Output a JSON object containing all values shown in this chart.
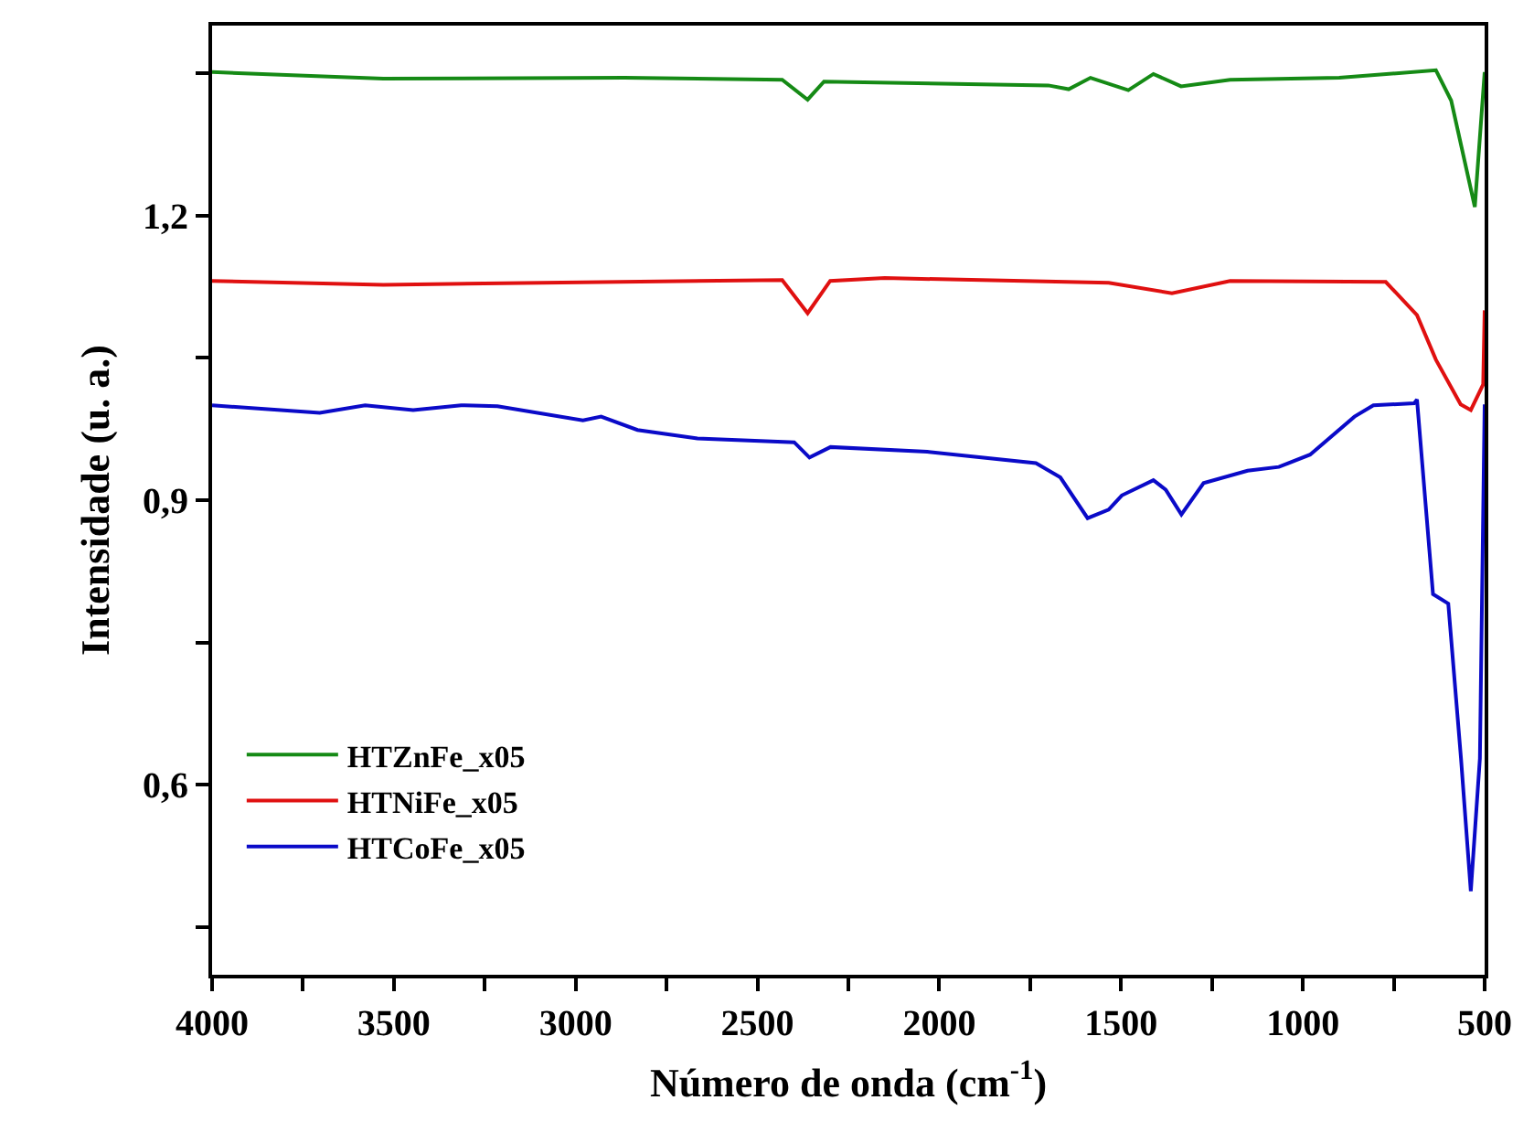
{
  "chart_data": {
    "type": "line",
    "xlabel": "Número de onda (cm$^{-1}$)",
    "ylabel": "Intensidade (u. a.)",
    "xlim": [
      4000,
      500
    ],
    "ylim": [
      0.4,
      1.4
    ],
    "xticks": [
      4000,
      {
        "value": 3750,
        "label": null
      },
      3500,
      {
        "value": 3250,
        "label": null
      },
      3000,
      {
        "value": 2750,
        "label": null
      },
      2500,
      {
        "value": 2250,
        "label": null
      },
      2000,
      {
        "value": 1750,
        "label": null
      },
      1500,
      {
        "value": 1250,
        "label": null
      },
      1000,
      {
        "value": 750,
        "label": null
      },
      500
    ],
    "yticks": [
      {
        "value": 0.45,
        "label": null
      },
      {
        "value": 0.6,
        "label": "0,6"
      },
      {
        "value": 0.75,
        "label": null
      },
      {
        "value": 0.9,
        "label": "0,9"
      },
      {
        "value": 1.05,
        "label": null
      },
      {
        "value": 1.2,
        "label": "1,2"
      },
      {
        "value": 1.35,
        "label": null
      }
    ],
    "legend": "bottom left",
    "marker": "none",
    "line_style": "solid",
    "series": [
      {
        "name": "HTZnFe_x05",
        "color": "#158a15",
        "x": [
          4000,
          3529,
          2866,
          2432,
          2362,
          2317,
          1700,
          1644,
          1584,
          1480,
          1411,
          1335,
          1200,
          900,
          634,
          592,
          527,
          500
        ],
        "values": [
          1.351,
          1.344,
          1.345,
          1.343,
          1.322,
          1.341,
          1.337,
          1.333,
          1.345,
          1.332,
          1.349,
          1.336,
          1.343,
          1.345,
          1.353,
          1.321,
          1.209,
          1.351
        ]
      },
      {
        "name": "HTNiFe_x05",
        "color": "#e01010",
        "x": [
          4000,
          3529,
          2432,
          2362,
          2300,
          2150,
          1534,
          1360,
          1200,
          772,
          686,
          634,
          566,
          538,
          504,
          500
        ],
        "values": [
          1.131,
          1.127,
          1.132,
          1.097,
          1.131,
          1.134,
          1.129,
          1.118,
          1.131,
          1.13,
          1.095,
          1.048,
          1.001,
          0.995,
          1.022,
          1.1
        ]
      },
      {
        "name": "HTCoFe_x05",
        "color": "#0a0ac8",
        "x": [
          4000,
          3704,
          3579,
          3447,
          3315,
          3215,
          2980,
          2930,
          2830,
          2665,
          2399,
          2357,
          2299,
          2033,
          1734,
          1667,
          1592,
          1534,
          1498,
          1411,
          1377,
          1334,
          1273,
          1152,
          1066,
          980,
          858,
          806,
          694,
          686,
          668,
          642,
          600,
          565,
          538,
          513,
          500
        ],
        "values": [
          1.0,
          0.992,
          1.0,
          0.995,
          1.0,
          0.999,
          0.984,
          0.988,
          0.974,
          0.965,
          0.961,
          0.945,
          0.956,
          0.951,
          0.939,
          0.924,
          0.881,
          0.89,
          0.905,
          0.921,
          0.911,
          0.885,
          0.918,
          0.931,
          0.935,
          0.948,
          0.988,
          1.0,
          1.002,
          1.006,
          0.922,
          0.801,
          0.791,
          0.628,
          0.488,
          0.628,
          1.001
        ]
      }
    ]
  }
}
